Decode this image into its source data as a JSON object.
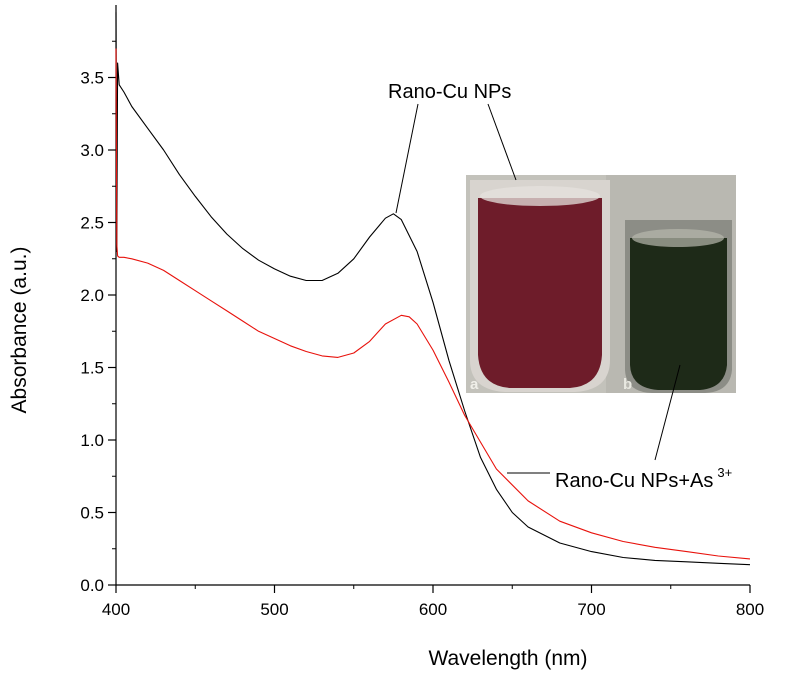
{
  "chart_data": {
    "type": "line",
    "title": "",
    "xlabel": "Wavelength (nm)",
    "ylabel": "Absorbance (a.u.)",
    "xlim": [
      400,
      800
    ],
    "ylim": [
      0,
      4.0
    ],
    "x_ticks": [
      400,
      500,
      600,
      700,
      800
    ],
    "x_tick_labels": [
      "400",
      "500",
      "600",
      "700",
      "800"
    ],
    "y_ticks": [
      0.0,
      0.5,
      1.0,
      1.5,
      2.0,
      2.5,
      3.0,
      3.5
    ],
    "y_tick_labels": [
      "0.0",
      "0.5",
      "1.0",
      "1.5",
      "2.0",
      "2.5",
      "3.0",
      "3.5"
    ],
    "grid": false,
    "series": [
      {
        "color": "#000000",
        "x": [
          400,
          400.5,
          401,
          402,
          405,
          410,
          420,
          430,
          440,
          450,
          460,
          470,
          480,
          490,
          500,
          510,
          520,
          530,
          540,
          550,
          560,
          570,
          575,
          580,
          590,
          600,
          610,
          620,
          630,
          640,
          650,
          660,
          680,
          700,
          720,
          740,
          760,
          780,
          800
        ],
        "y": [
          3.95,
          2.3,
          3.6,
          3.45,
          3.4,
          3.3,
          3.15,
          3.0,
          2.83,
          2.68,
          2.54,
          2.42,
          2.32,
          2.24,
          2.18,
          2.13,
          2.1,
          2.1,
          2.15,
          2.25,
          2.4,
          2.53,
          2.56,
          2.52,
          2.3,
          1.95,
          1.55,
          1.2,
          0.88,
          0.66,
          0.5,
          0.4,
          0.29,
          0.23,
          0.19,
          0.17,
          0.16,
          0.15,
          0.14
        ]
      },
      {
        "color": "#e8120c",
        "x": [
          400,
          400.5,
          401,
          402,
          405,
          410,
          420,
          430,
          440,
          450,
          460,
          470,
          480,
          490,
          500,
          510,
          520,
          530,
          540,
          550,
          560,
          570,
          580,
          585,
          590,
          600,
          610,
          620,
          640,
          660,
          680,
          700,
          720,
          740,
          760,
          780,
          800
        ],
        "y": [
          3.7,
          2.35,
          2.27,
          2.26,
          2.26,
          2.25,
          2.22,
          2.17,
          2.1,
          2.03,
          1.96,
          1.89,
          1.82,
          1.75,
          1.7,
          1.65,
          1.61,
          1.58,
          1.57,
          1.6,
          1.68,
          1.8,
          1.86,
          1.85,
          1.8,
          1.62,
          1.4,
          1.17,
          0.8,
          0.58,
          0.44,
          0.36,
          0.3,
          0.26,
          0.23,
          0.2,
          0.18
        ]
      }
    ],
    "annotations": [
      {
        "text": "Rano-Cu NPs"
      },
      {
        "text": "Rano-Cu NPs+As",
        "superscript": "3+"
      }
    ],
    "inset": {
      "vial_labels": [
        "a",
        "b"
      ],
      "vial_colors": [
        "#6e1c2a",
        "#1e2a18"
      ]
    }
  }
}
